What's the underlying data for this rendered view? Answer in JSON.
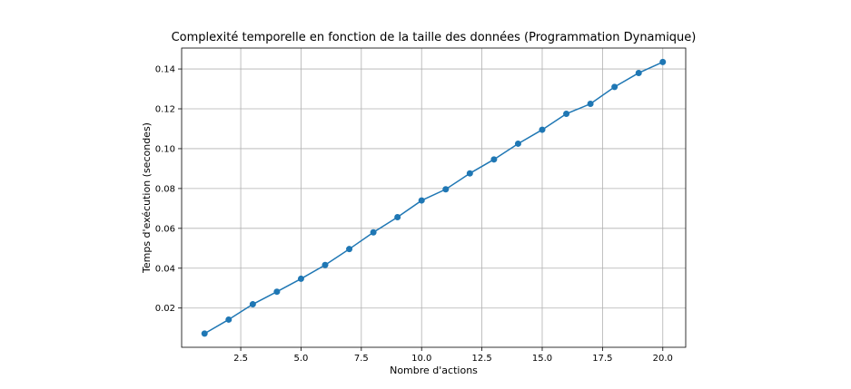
{
  "chart_data": {
    "type": "line",
    "title": "Complexité temporelle en fonction de la taille des données (Programmation Dynamique)",
    "xlabel": "Nombre d'actions",
    "ylabel": "Temps d'exécution (secondes)",
    "xlim": [
      0.05,
      20.95
    ],
    "ylim": [
      0.0003,
      0.1505
    ],
    "xticks": [
      2.5,
      5.0,
      7.5,
      10.0,
      12.5,
      15.0,
      17.5,
      20.0
    ],
    "xtick_labels": [
      "2.5",
      "5.0",
      "7.5",
      "10.0",
      "12.5",
      "15.0",
      "17.5",
      "20.0"
    ],
    "yticks": [
      0.02,
      0.04,
      0.06,
      0.08,
      0.1,
      0.12,
      0.14
    ],
    "ytick_labels": [
      "0.02",
      "0.04",
      "0.06",
      "0.08",
      "0.10",
      "0.12",
      "0.14"
    ],
    "grid": true,
    "marker": "circle",
    "color": "#1f77b4",
    "series": [
      {
        "x": [
          1,
          2,
          3,
          4,
          5,
          6,
          7,
          8,
          9,
          10,
          11,
          12,
          13,
          14,
          15,
          16,
          17,
          18,
          19,
          20
        ],
        "y": [
          0.0072,
          0.0142,
          0.0219,
          0.0282,
          0.0347,
          0.0416,
          0.0496,
          0.058,
          0.0656,
          0.074,
          0.0796,
          0.0876,
          0.0946,
          0.1025,
          0.1095,
          0.1175,
          0.1225,
          0.131,
          0.138,
          0.1435
        ]
      }
    ]
  }
}
